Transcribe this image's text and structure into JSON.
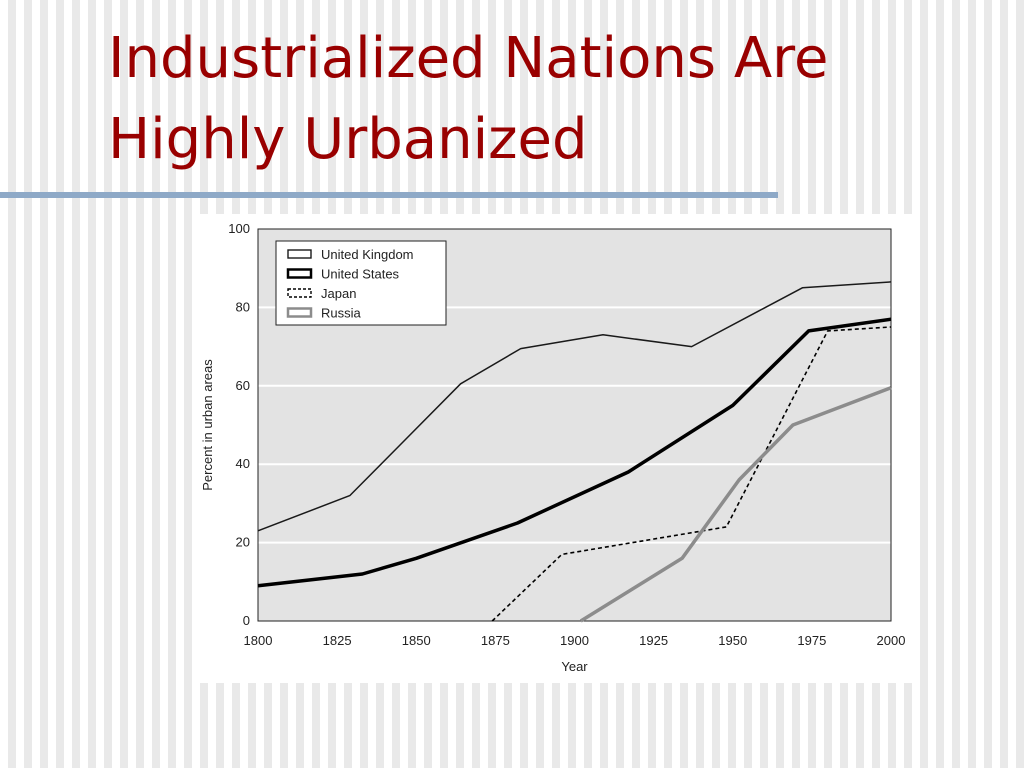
{
  "slide": {
    "title_line1": "Industrialized Nations Are",
    "title_line2": "Highly Urbanized",
    "title_color": "#990000",
    "rule_color": "#8ea9c7"
  },
  "chart_data": {
    "type": "line",
    "title": "",
    "xlabel": "Year",
    "ylabel": "Percent in urban areas",
    "xlim": [
      1800,
      2000
    ],
    "ylim": [
      0,
      100
    ],
    "xticks": [
      1800,
      1825,
      1850,
      1875,
      1900,
      1925,
      1950,
      1975,
      2000
    ],
    "yticks": [
      0,
      20,
      40,
      60,
      80,
      100
    ],
    "grid": "horizontal",
    "legend_position": "top-left",
    "background": "#e3e3e3",
    "series": [
      {
        "name": "United Kingdom",
        "style": "thin",
        "color": "#1a1a1a",
        "points": [
          [
            1800,
            23
          ],
          [
            1829,
            32
          ],
          [
            1845,
            45
          ],
          [
            1864,
            60.5
          ],
          [
            1883,
            69.5
          ],
          [
            1909,
            73
          ],
          [
            1937,
            70
          ],
          [
            1958,
            79
          ],
          [
            1972,
            85
          ],
          [
            2000,
            86.5
          ]
        ]
      },
      {
        "name": "United States",
        "style": "thick",
        "color": "#000000",
        "points": [
          [
            1800,
            9
          ],
          [
            1833,
            12
          ],
          [
            1850,
            16
          ],
          [
            1882,
            25
          ],
          [
            1917,
            38
          ],
          [
            1950,
            55
          ],
          [
            1974,
            74
          ],
          [
            2000,
            77
          ]
        ]
      },
      {
        "name": "Japan",
        "style": "dashed",
        "color": "#000000",
        "points": [
          [
            1874,
            0
          ],
          [
            1896,
            17
          ],
          [
            1948,
            24
          ],
          [
            1980,
            74
          ],
          [
            2000,
            75
          ]
        ]
      },
      {
        "name": "Russia",
        "style": "gray",
        "color": "#8c8c8c",
        "points": [
          [
            1902,
            0
          ],
          [
            1934,
            16
          ],
          [
            1952,
            36
          ],
          [
            1969,
            50
          ],
          [
            2000,
            59.5
          ]
        ]
      }
    ]
  }
}
